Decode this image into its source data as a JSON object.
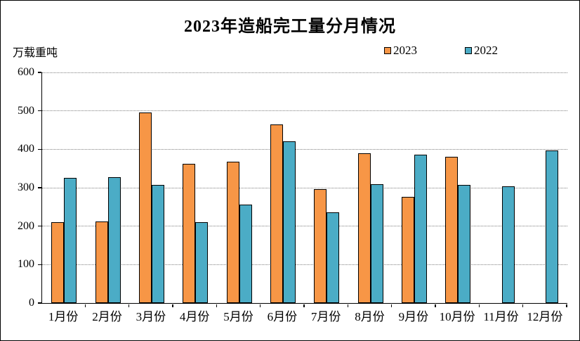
{
  "window": {
    "background_color": "#ffffff",
    "border_color": "#000000"
  },
  "chart_data": {
    "type": "bar",
    "title": "2023年造船完工量分月情况",
    "unit_label": "万载重吨",
    "xlabel": "",
    "ylabel": "万载重吨",
    "categories": [
      "1月份",
      "2月份",
      "3月份",
      "4月份",
      "5月份",
      "6月份",
      "7月份",
      "8月份",
      "9月份",
      "10月份",
      "11月份",
      "12月份"
    ],
    "series": [
      {
        "name": "2023",
        "color": "#F79646",
        "values": [
          211,
          212,
          495,
          362,
          368,
          464,
          296,
          389,
          277,
          381,
          null,
          null
        ]
      },
      {
        "name": "2022",
        "color": "#4BACC6",
        "values": [
          326,
          327,
          308,
          210,
          257,
          421,
          236,
          310,
          386,
          308,
          304,
          397
        ]
      }
    ],
    "ylim": [
      0,
      600
    ],
    "yticks": [
      0,
      100,
      200,
      300,
      400,
      500,
      600
    ],
    "grid": "horizontal-dotted",
    "legend_position": "top-right",
    "gridline_color": "#808080",
    "axis_color": "#000000",
    "bar_border_color": "#000000"
  }
}
